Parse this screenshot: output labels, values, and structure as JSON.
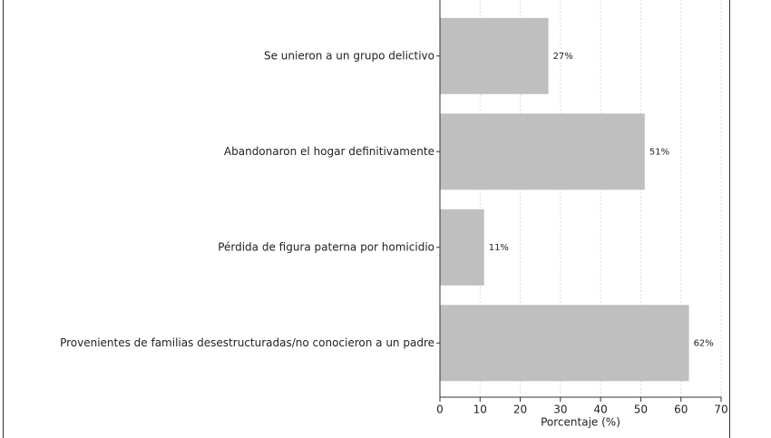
{
  "chart_data": {
    "type": "barh",
    "xlabel": "Porcentaje (%)",
    "categories": [
      "Se unieron a un grupo delictivo",
      "Abandonaron el hogar definitivamente",
      "Pérdida de figura paterna por homicidio",
      "Provenientes de familias desestructuradas/no conocieron a un padre"
    ],
    "values": [
      27,
      51,
      11,
      62
    ],
    "value_labels": [
      "27%",
      "51%",
      "11%",
      "62%"
    ],
    "color": "#bfbfbf",
    "xlim": [
      0,
      70
    ],
    "xticks": [
      0,
      10,
      20,
      30,
      40,
      50,
      60,
      70
    ],
    "grid": true
  }
}
